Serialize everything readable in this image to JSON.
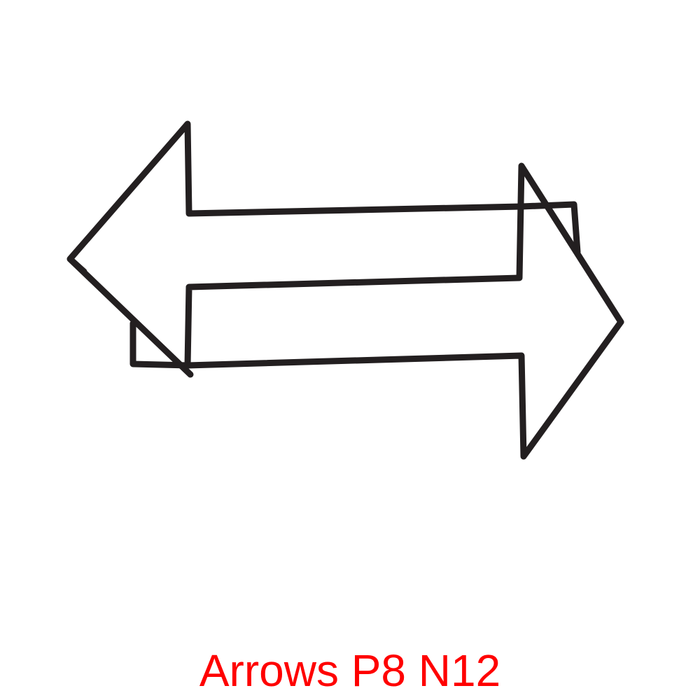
{
  "caption": {
    "text": "Arrows P8 N12",
    "color": "#ff0000"
  },
  "drawing": {
    "stroke_color": "#231f20",
    "background_color": "#ffffff",
    "shapes": [
      "left-arrow-icon",
      "right-arrow-icon"
    ]
  }
}
